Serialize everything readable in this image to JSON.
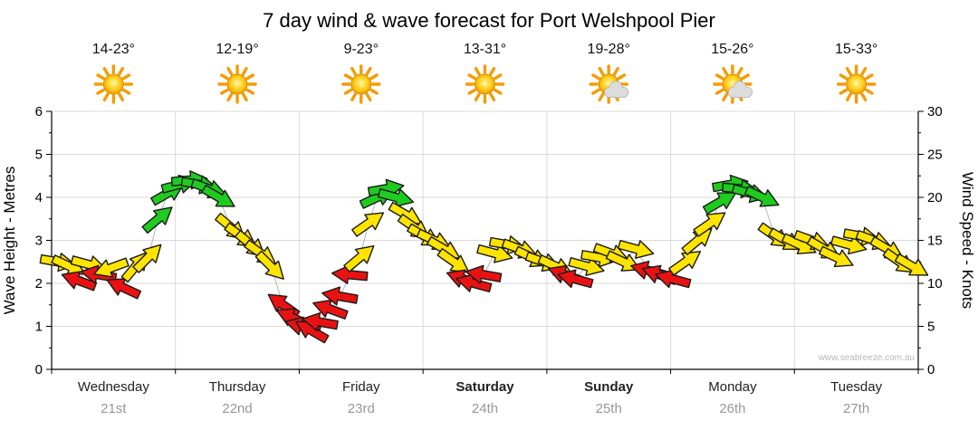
{
  "watermark": "www.seabreeze.com.au",
  "days": [
    {
      "name": "Wednesday",
      "date": "21st",
      "temp_range": "14-23°",
      "icon": "sunny",
      "weekend": false
    },
    {
      "name": "Thursday",
      "date": "22nd",
      "temp_range": "12-19°",
      "icon": "sunny",
      "weekend": false
    },
    {
      "name": "Friday",
      "date": "23rd",
      "temp_range": "9-23°",
      "icon": "sunny",
      "weekend": false
    },
    {
      "name": "Saturday",
      "date": "24th",
      "temp_range": "13-31°",
      "icon": "sunny",
      "weekend": true
    },
    {
      "name": "Sunday",
      "date": "25th",
      "temp_range": "19-28°",
      "icon": "partly-cloudy",
      "weekend": true
    },
    {
      "name": "Monday",
      "date": "26th",
      "temp_range": "15-26°",
      "icon": "partly-cloudy",
      "weekend": false
    },
    {
      "name": "Tuesday",
      "date": "27th",
      "temp_range": "15-33°",
      "icon": "sunny",
      "weekend": false
    }
  ],
  "colors": {
    "arrow_yellow": "#ffe400",
    "arrow_red": "#e81212",
    "arrow_green": "#1ecb1e",
    "arrow_outline": "#1a1a1a",
    "grid": "#d9d9d9",
    "axis": "#000000",
    "day_name": "#222222",
    "day_date": "#979797",
    "temp_text": "#111111",
    "watermark": "#b8b8b8",
    "series_line": "#b4b4b4",
    "sun_core": "#ffcc00",
    "sun_ray": "#f59b00",
    "cloud_fill": "#dcdcdc",
    "cloud_edge": "#999999"
  },
  "chart_data": {
    "type": "wind-arrow-time-series",
    "title": "7 day wind & wave forecast for Port Welshpool Pier",
    "x_axis": {
      "unit": "days",
      "range": [
        0,
        7
      ],
      "categories": [
        "Wednesday 21st",
        "Thursday 22nd",
        "Friday 23rd",
        "Saturday 24th",
        "Sunday 25th",
        "Monday 26th",
        "Tuesday 27th"
      ]
    },
    "left_axis": {
      "label": "Wave Height - Metres",
      "unit": "m",
      "range": [
        0,
        6
      ],
      "ticks": [
        0,
        1,
        2,
        3,
        4,
        5,
        6
      ]
    },
    "right_axis": {
      "label": "Wind Speed - Knots",
      "unit": "knots",
      "range": [
        0,
        30
      ],
      "ticks": [
        0,
        5,
        10,
        15,
        20,
        25,
        30
      ]
    },
    "grid": true,
    "point_format": [
      "time_days",
      "wind_speed_knots",
      "arrow_direction_deg_screen",
      "color_key(y=yellow,r=red,g=green)"
    ],
    "points": [
      [
        0.05,
        12.5,
        10,
        "y"
      ],
      [
        0.14,
        12.0,
        25,
        "y"
      ],
      [
        0.22,
        10.3,
        200,
        "r"
      ],
      [
        0.3,
        12.2,
        15,
        "y"
      ],
      [
        0.38,
        11.0,
        190,
        "r"
      ],
      [
        0.48,
        11.8,
        160,
        "y"
      ],
      [
        0.58,
        9.5,
        205,
        "r"
      ],
      [
        0.68,
        12.0,
        -50,
        "y"
      ],
      [
        0.78,
        13.0,
        -45,
        "y"
      ],
      [
        0.86,
        17.5,
        -40,
        "g"
      ],
      [
        0.94,
        20.5,
        -30,
        "g"
      ],
      [
        1.03,
        21.5,
        -15,
        "g"
      ],
      [
        1.11,
        22.0,
        -5,
        "g"
      ],
      [
        1.19,
        21.5,
        10,
        "g"
      ],
      [
        1.27,
        21.0,
        20,
        "g"
      ],
      [
        1.35,
        20.0,
        30,
        "g"
      ],
      [
        1.45,
        16.5,
        40,
        "y"
      ],
      [
        1.53,
        15.5,
        35,
        "y"
      ],
      [
        1.61,
        14.5,
        40,
        "y"
      ],
      [
        1.69,
        13.5,
        35,
        "y"
      ],
      [
        1.77,
        12.0,
        45,
        "y"
      ],
      [
        1.87,
        7.5,
        215,
        "r"
      ],
      [
        1.95,
        6.0,
        205,
        "r"
      ],
      [
        2.03,
        5.0,
        195,
        "r"
      ],
      [
        2.1,
        4.5,
        210,
        "r"
      ],
      [
        2.17,
        5.5,
        190,
        "r"
      ],
      [
        2.25,
        7.0,
        200,
        "r"
      ],
      [
        2.33,
        8.5,
        190,
        "r"
      ],
      [
        2.41,
        11.0,
        185,
        "r"
      ],
      [
        2.49,
        13.0,
        -40,
        "y"
      ],
      [
        2.56,
        17.0,
        -35,
        "y"
      ],
      [
        2.63,
        20.0,
        -25,
        "g"
      ],
      [
        2.7,
        21.0,
        -10,
        "g"
      ],
      [
        2.78,
        20.0,
        15,
        "g"
      ],
      [
        2.86,
        18.0,
        30,
        "y"
      ],
      [
        2.93,
        16.5,
        35,
        "y"
      ],
      [
        3.01,
        15.5,
        30,
        "y"
      ],
      [
        3.09,
        15.0,
        25,
        "y"
      ],
      [
        3.17,
        14.0,
        30,
        "y"
      ],
      [
        3.25,
        12.5,
        35,
        "y"
      ],
      [
        3.33,
        10.5,
        200,
        "r"
      ],
      [
        3.41,
        10.0,
        195,
        "r"
      ],
      [
        3.49,
        11.0,
        190,
        "r"
      ],
      [
        3.58,
        13.5,
        15,
        "y"
      ],
      [
        3.68,
        14.5,
        10,
        "y"
      ],
      [
        3.78,
        14.0,
        20,
        "y"
      ],
      [
        3.88,
        13.0,
        25,
        "y"
      ],
      [
        3.97,
        12.5,
        20,
        "y"
      ],
      [
        4.07,
        12.0,
        25,
        "y"
      ],
      [
        4.15,
        11.0,
        200,
        "r"
      ],
      [
        4.23,
        10.5,
        195,
        "r"
      ],
      [
        4.32,
        12.0,
        15,
        "y"
      ],
      [
        4.42,
        13.0,
        10,
        "y"
      ],
      [
        4.52,
        13.5,
        20,
        "y"
      ],
      [
        4.62,
        12.5,
        25,
        "y"
      ],
      [
        4.72,
        14.0,
        15,
        "y"
      ],
      [
        4.82,
        11.5,
        195,
        "r"
      ],
      [
        4.91,
        11.0,
        200,
        "r"
      ],
      [
        5.02,
        10.5,
        195,
        "r"
      ],
      [
        5.12,
        12.5,
        -35,
        "y"
      ],
      [
        5.22,
        15.0,
        -40,
        "y"
      ],
      [
        5.32,
        17.0,
        -35,
        "y"
      ],
      [
        5.4,
        19.5,
        -30,
        "g"
      ],
      [
        5.48,
        21.5,
        -10,
        "g"
      ],
      [
        5.56,
        21.0,
        5,
        "g"
      ],
      [
        5.64,
        20.5,
        15,
        "g"
      ],
      [
        5.74,
        20.0,
        25,
        "g"
      ],
      [
        5.84,
        15.5,
        35,
        "y"
      ],
      [
        5.93,
        15.0,
        30,
        "y"
      ],
      [
        6.04,
        14.5,
        25,
        "y"
      ],
      [
        6.14,
        15.0,
        20,
        "y"
      ],
      [
        6.24,
        14.0,
        30,
        "y"
      ],
      [
        6.34,
        13.0,
        25,
        "y"
      ],
      [
        6.44,
        14.5,
        15,
        "y"
      ],
      [
        6.54,
        15.5,
        10,
        "y"
      ],
      [
        6.64,
        15.0,
        20,
        "y"
      ],
      [
        6.75,
        14.0,
        30,
        "y"
      ],
      [
        6.85,
        12.5,
        35,
        "y"
      ],
      [
        6.95,
        12.0,
        30,
        "y"
      ]
    ]
  }
}
